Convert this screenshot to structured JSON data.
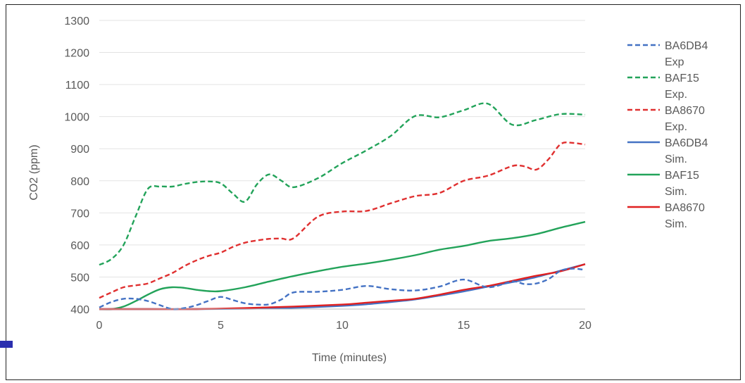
{
  "chart_data": {
    "type": "line",
    "title": "",
    "xlabel": "Time (minutes)",
    "ylabel": "CO2  (ppm)",
    "xlim": [
      0,
      20
    ],
    "ylim": [
      400,
      1300
    ],
    "x_ticks": [
      0,
      5,
      10,
      15,
      20
    ],
    "y_ticks": [
      400,
      500,
      600,
      700,
      800,
      900,
      1000,
      1100,
      1200,
      1300
    ],
    "grid": "horizontal",
    "legend_position": "right",
    "series": [
      {
        "name_line1": "BA6DB4",
        "name_line2": "Exp",
        "color": "#4472c4",
        "dash": true,
        "x": [
          0,
          0.5,
          1,
          1.5,
          2,
          2.5,
          3,
          3.5,
          4,
          4.5,
          5,
          5.5,
          6,
          6.5,
          7,
          7.5,
          8,
          9,
          10,
          11,
          12,
          13,
          14,
          15,
          16,
          17,
          17.5,
          18,
          18.5,
          19,
          19.5,
          20
        ],
        "y": [
          405,
          422,
          432,
          432,
          425,
          412,
          400,
          403,
          412,
          426,
          438,
          428,
          418,
          414,
          415,
          430,
          452,
          454,
          460,
          472,
          462,
          458,
          470,
          492,
          468,
          486,
          478,
          480,
          494,
          520,
          526,
          522
        ]
      },
      {
        "name_line1": "BAF15",
        "name_line2": "Exp.",
        "color": "#23a35a",
        "dash": true,
        "x": [
          0,
          0.5,
          1,
          1.5,
          2,
          2.5,
          3,
          3.5,
          4,
          4.5,
          5,
          5.5,
          6,
          6.5,
          7,
          7.5,
          8,
          9,
          10,
          11,
          12,
          13,
          14,
          15,
          16,
          17,
          18,
          19,
          20
        ],
        "y": [
          538,
          556,
          600,
          690,
          775,
          782,
          782,
          790,
          796,
          798,
          792,
          760,
          735,
          790,
          820,
          800,
          780,
          808,
          855,
          895,
          940,
          1002,
          998,
          1020,
          1040,
          975,
          990,
          1008,
          1006
        ]
      },
      {
        "name_line1": "BA8670",
        "name_line2": "Exp.",
        "color": "#e03030",
        "dash": true,
        "x": [
          0,
          0.5,
          1,
          1.5,
          2,
          2.5,
          3,
          3.5,
          4,
          4.5,
          5,
          5.5,
          6,
          6.5,
          7,
          7.5,
          8,
          9,
          10,
          11,
          12,
          13,
          14,
          15,
          16,
          17,
          17.5,
          18,
          18.5,
          19,
          19.5,
          20
        ],
        "y": [
          435,
          452,
          468,
          474,
          480,
          496,
          512,
          534,
          552,
          566,
          576,
          594,
          607,
          614,
          619,
          620,
          621,
          688,
          704,
          706,
          730,
          752,
          762,
          800,
          816,
          846,
          845,
          835,
          868,
          915,
          918,
          913
        ]
      },
      {
        "name_line1": "BA6DB4",
        "name_line2": "Sim.",
        "color": "#4472c4",
        "dash": false,
        "x": [
          0,
          2,
          4,
          6,
          8,
          10,
          11,
          12,
          13,
          14,
          15,
          16,
          17,
          18,
          19,
          20
        ],
        "y": [
          400,
          400,
          400,
          401,
          404,
          410,
          415,
          422,
          430,
          442,
          455,
          470,
          484,
          500,
          520,
          540
        ]
      },
      {
        "name_line1": "BAF15",
        "name_line2": "Sim.",
        "color": "#23a35a",
        "dash": false,
        "x": [
          0,
          0.5,
          1,
          1.5,
          2,
          2.5,
          3,
          3.5,
          4,
          4.5,
          5,
          6,
          7,
          8,
          9,
          10,
          11,
          12,
          13,
          14,
          15,
          16,
          17,
          18,
          19,
          20
        ],
        "y": [
          400,
          400,
          408,
          425,
          445,
          462,
          468,
          466,
          460,
          456,
          456,
          468,
          486,
          503,
          518,
          532,
          542,
          554,
          568,
          585,
          597,
          612,
          621,
          634,
          654,
          672
        ]
      },
      {
        "name_line1": "BA8670",
        "name_line2": "Sim.",
        "color": "#e02020",
        "dash": false,
        "x": [
          0,
          2,
          4,
          6,
          8,
          10,
          11,
          12,
          13,
          14,
          15,
          16,
          17,
          18,
          19,
          20
        ],
        "y": [
          400,
          400,
          400,
          403,
          408,
          414,
          420,
          426,
          432,
          445,
          460,
          472,
          488,
          504,
          518,
          540
        ]
      }
    ]
  }
}
